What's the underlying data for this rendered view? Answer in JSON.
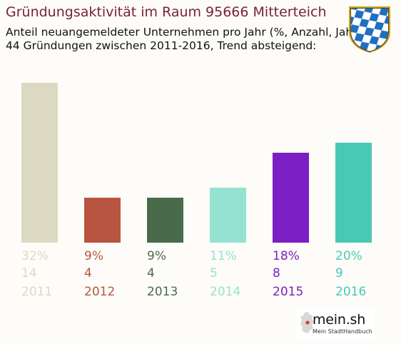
{
  "header": {
    "title": "Gründungsaktivität im Raum 95666 Mitterteich",
    "subtitle_line1": "Anteil neuangemeldeter Unternehmen pro Jahr (%, Anzahl, Jahr)",
    "subtitle_line2": "44 Gründungen zwischen 2011-2016, Trend absteigend:"
  },
  "logo": {
    "name": "mein.sh",
    "tagline": "Mein StadtHandbuch"
  },
  "coat_of_arms_icon": "bavarian-lozenge-coat-of-arms-icon",
  "chart_data": {
    "type": "bar",
    "categories": [
      "2011",
      "2012",
      "2013",
      "2014",
      "2015",
      "2016"
    ],
    "values": [
      32,
      9,
      9,
      11,
      18,
      20
    ],
    "counts": [
      14,
      4,
      4,
      5,
      8,
      9
    ],
    "percent_labels": [
      "32%",
      "9%",
      "9%",
      "11%",
      "18%",
      "20%"
    ],
    "colors": [
      "#dcd9c2",
      "#b85540",
      "#4a6b4a",
      "#96e2d2",
      "#7b1fc5",
      "#48c9b8"
    ],
    "ylim": [
      0,
      32
    ],
    "grid": false,
    "legend": "none"
  }
}
